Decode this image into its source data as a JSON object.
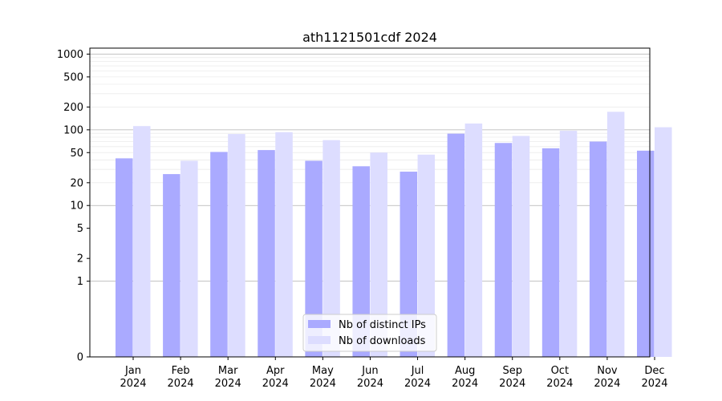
{
  "chart_data": {
    "type": "bar",
    "title": "ath1121501cdf 2024",
    "xlabel": "",
    "ylabel": "",
    "yscale": "symlog",
    "ylim": [
      0,
      1200
    ],
    "grid": "horizontal",
    "legend_position": "bottom-center",
    "categories": [
      "Jan\n2024",
      "Feb\n2024",
      "Mar\n2024",
      "Apr\n2024",
      "May\n2024",
      "Jun\n2024",
      "Jul\n2024",
      "Aug\n2024",
      "Sep\n2024",
      "Oct\n2024",
      "Nov\n2024",
      "Dec\n2024"
    ],
    "y_ticks": [
      0,
      1,
      2,
      5,
      10,
      20,
      50,
      100,
      200,
      500,
      1000
    ],
    "series": [
      {
        "name": "Nb of distinct IPs",
        "color": "#aaaaff",
        "values": [
          42,
          26,
          51,
          54,
          39,
          33,
          28,
          89,
          67,
          57,
          70,
          53
        ]
      },
      {
        "name": "Nb of downloads",
        "color": "#ddddff",
        "values": [
          112,
          39,
          88,
          93,
          73,
          50,
          47,
          121,
          83,
          97,
          173,
          108
        ]
      }
    ]
  }
}
